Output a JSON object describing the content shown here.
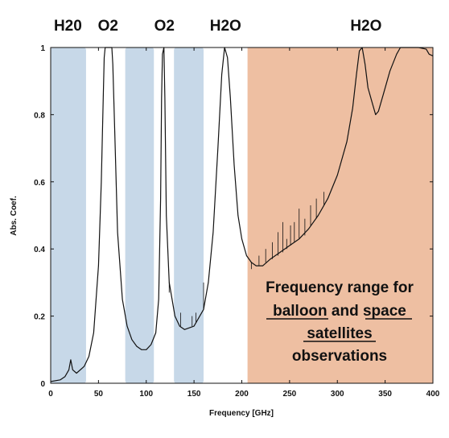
{
  "chart_data": {
    "type": "line",
    "title": "",
    "xlabel": "Frequency [GHz]",
    "ylabel": "Abs. Coef.",
    "xlim": [
      0,
      400
    ],
    "ylim": [
      0,
      1
    ],
    "x_ticks": [
      0,
      50,
      100,
      150,
      200,
      250,
      300,
      350,
      400
    ],
    "y_ticks": [
      0,
      0.2,
      0.4,
      0.6,
      0.8,
      1
    ],
    "y_tick_labels": [
      "0",
      "0.2",
      "0.4",
      "0.6",
      "0.8",
      "1"
    ],
    "grid": false,
    "legend": "none",
    "species_labels": [
      {
        "text": "H20",
        "x": 18
      },
      {
        "text": "O2",
        "x": 60
      },
      {
        "text": "O2",
        "x": 119
      },
      {
        "text": "H2O",
        "x": 183
      },
      {
        "text": "H2O",
        "x": 330
      }
    ],
    "bands": [
      {
        "x0": 0,
        "x1": 37,
        "color": "#c7d8e8"
      },
      {
        "x0": 78,
        "x1": 108,
        "color": "#c7d8e8"
      },
      {
        "x0": 129,
        "x1": 160,
        "color": "#c7d8e8"
      },
      {
        "x0": 206,
        "x1": 400,
        "color": "#eebfa2"
      }
    ],
    "annotation": {
      "lines": [
        "Frequency range for",
        "balloon and space",
        "satellites",
        "observations"
      ]
    },
    "series": [
      {
        "color": "#111111",
        "points": [
          [
            0,
            0.005
          ],
          [
            10,
            0.01
          ],
          [
            15,
            0.02
          ],
          [
            19,
            0.04
          ],
          [
            21,
            0.07
          ],
          [
            23,
            0.04
          ],
          [
            27,
            0.03
          ],
          [
            35,
            0.05
          ],
          [
            40,
            0.08
          ],
          [
            45,
            0.15
          ],
          [
            50,
            0.35
          ],
          [
            53,
            0.6
          ],
          [
            55,
            0.85
          ],
          [
            56,
            0.97
          ],
          [
            57,
            1.0
          ],
          [
            64,
            1.0
          ],
          [
            65,
            0.95
          ],
          [
            67,
            0.75
          ],
          [
            70,
            0.45
          ],
          [
            75,
            0.25
          ],
          [
            80,
            0.17
          ],
          [
            85,
            0.13
          ],
          [
            90,
            0.11
          ],
          [
            95,
            0.1
          ],
          [
            100,
            0.1
          ],
          [
            105,
            0.115
          ],
          [
            110,
            0.15
          ],
          [
            113,
            0.25
          ],
          [
            115,
            0.55
          ],
          [
            116,
            0.85
          ],
          [
            117,
            0.98
          ],
          [
            118.5,
            1.0
          ],
          [
            119.5,
            0.85
          ],
          [
            121,
            0.5
          ],
          [
            124,
            0.3
          ],
          [
            130,
            0.2
          ],
          [
            135,
            0.17
          ],
          [
            140,
            0.16
          ],
          [
            150,
            0.17
          ],
          [
            160,
            0.22
          ],
          [
            165,
            0.3
          ],
          [
            170,
            0.45
          ],
          [
            175,
            0.7
          ],
          [
            179,
            0.92
          ],
          [
            182,
            1.0
          ],
          [
            185,
            0.97
          ],
          [
            188,
            0.85
          ],
          [
            192,
            0.65
          ],
          [
            196,
            0.5
          ],
          [
            200,
            0.43
          ],
          [
            205,
            0.38
          ],
          [
            210,
            0.36
          ],
          [
            215,
            0.35
          ],
          [
            222,
            0.35
          ],
          [
            230,
            0.37
          ],
          [
            240,
            0.39
          ],
          [
            250,
            0.41
          ],
          [
            260,
            0.43
          ],
          [
            270,
            0.46
          ],
          [
            280,
            0.5
          ],
          [
            290,
            0.55
          ],
          [
            300,
            0.62
          ],
          [
            310,
            0.72
          ],
          [
            316,
            0.82
          ],
          [
            320,
            0.92
          ],
          [
            323,
            0.99
          ],
          [
            326,
            1.0
          ],
          [
            329,
            0.95
          ],
          [
            332,
            0.88
          ],
          [
            336,
            0.84
          ],
          [
            340,
            0.8
          ],
          [
            343,
            0.81
          ],
          [
            348,
            0.86
          ],
          [
            355,
            0.93
          ],
          [
            362,
            0.98
          ],
          [
            366,
            1.0
          ],
          [
            375,
            1.0
          ],
          [
            385,
            1.0
          ],
          [
            393,
            0.995
          ],
          [
            396,
            0.98
          ],
          [
            400,
            0.975
          ]
        ]
      }
    ],
    "spikes": [
      [
        124,
        0.3,
        0.27
      ],
      [
        136,
        0.17,
        0.21
      ],
      [
        148,
        0.17,
        0.2
      ],
      [
        152,
        0.18,
        0.21
      ],
      [
        160,
        0.22,
        0.3
      ],
      [
        210,
        0.36,
        0.34
      ],
      [
        218,
        0.35,
        0.38
      ],
      [
        225,
        0.36,
        0.4
      ],
      [
        232,
        0.37,
        0.42
      ],
      [
        238,
        0.38,
        0.45
      ],
      [
        243,
        0.39,
        0.48
      ],
      [
        247,
        0.4,
        0.43
      ],
      [
        251,
        0.41,
        0.47
      ],
      [
        255,
        0.42,
        0.48
      ],
      [
        260,
        0.43,
        0.52
      ],
      [
        266,
        0.44,
        0.49
      ],
      [
        272,
        0.47,
        0.53
      ],
      [
        278,
        0.49,
        0.55
      ],
      [
        286,
        0.53,
        0.57
      ]
    ]
  }
}
